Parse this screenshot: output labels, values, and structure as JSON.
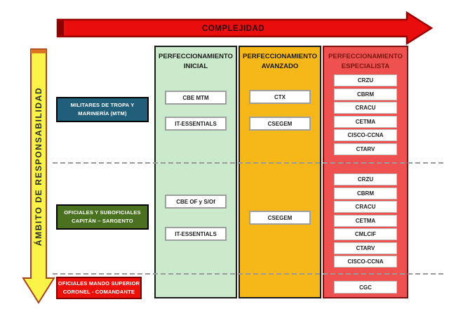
{
  "axes": {
    "complexity_label": "COMPLEJIDAD",
    "responsibility_label": "ÁMBITO DE RESPONSABILIDAD"
  },
  "columns": {
    "inicial": {
      "title": "PERFECCIONAMIENTO INICIAL"
    },
    "avanzado": {
      "title": "PERFECCIONAMIENTO AVANZADO"
    },
    "especialista": {
      "title": "PERFECCIONAMIENTO ESPECIALISTA"
    }
  },
  "rows": {
    "mtm": {
      "label_line1": "MILITARES DE TROPA Y",
      "label_line2": "MARINERÍA (MTM)",
      "inicial": [
        "CBE MTM",
        "IT-ESSENTIALS"
      ],
      "avanzado": [
        "CTX",
        "CSEGEM"
      ],
      "especialista": [
        "CRZU",
        "CBRM",
        "CRACU",
        "CETMA",
        "CISCO-CCNA",
        "CTARV"
      ]
    },
    "oficiales": {
      "label_line1": "OFICIALES Y SUBOFICIALES",
      "label_line2": "CAPITÁN – SARGENTO",
      "inicial": [
        "CBE OF y S/Of",
        "IT-ESSENTIALS"
      ],
      "avanzado": [
        "CSEGEM"
      ],
      "especialista": [
        "CRZU",
        "CBRM",
        "CRACU",
        "CETMA",
        "CMLCIF",
        "CTARV",
        "CISCO-CCNA"
      ]
    },
    "mando_superior": {
      "label_line1": "OFICIALES MANDO SUPERIOR",
      "label_line2": "CORONEL - COMANDANTE",
      "especialista": [
        "CGC"
      ]
    }
  },
  "colors": {
    "arrow_red": "#E90D0D",
    "arrow_red_border": "#990000",
    "arrow_red_tail": "#8B0000",
    "arrow_yellow": "#FAF448",
    "arrow_yellow_border": "#A5431C",
    "arrow_yellow_cap": "#DD7421",
    "col_inicial_bg": "#CBE9CB",
    "col_avanzado_bg": "#F6B719",
    "col_especialista_bg": "#EE5150",
    "label_mtm_bg": "#215E79",
    "label_oficiales_bg": "#49711F",
    "label_mando_bg": "#EC100B"
  }
}
